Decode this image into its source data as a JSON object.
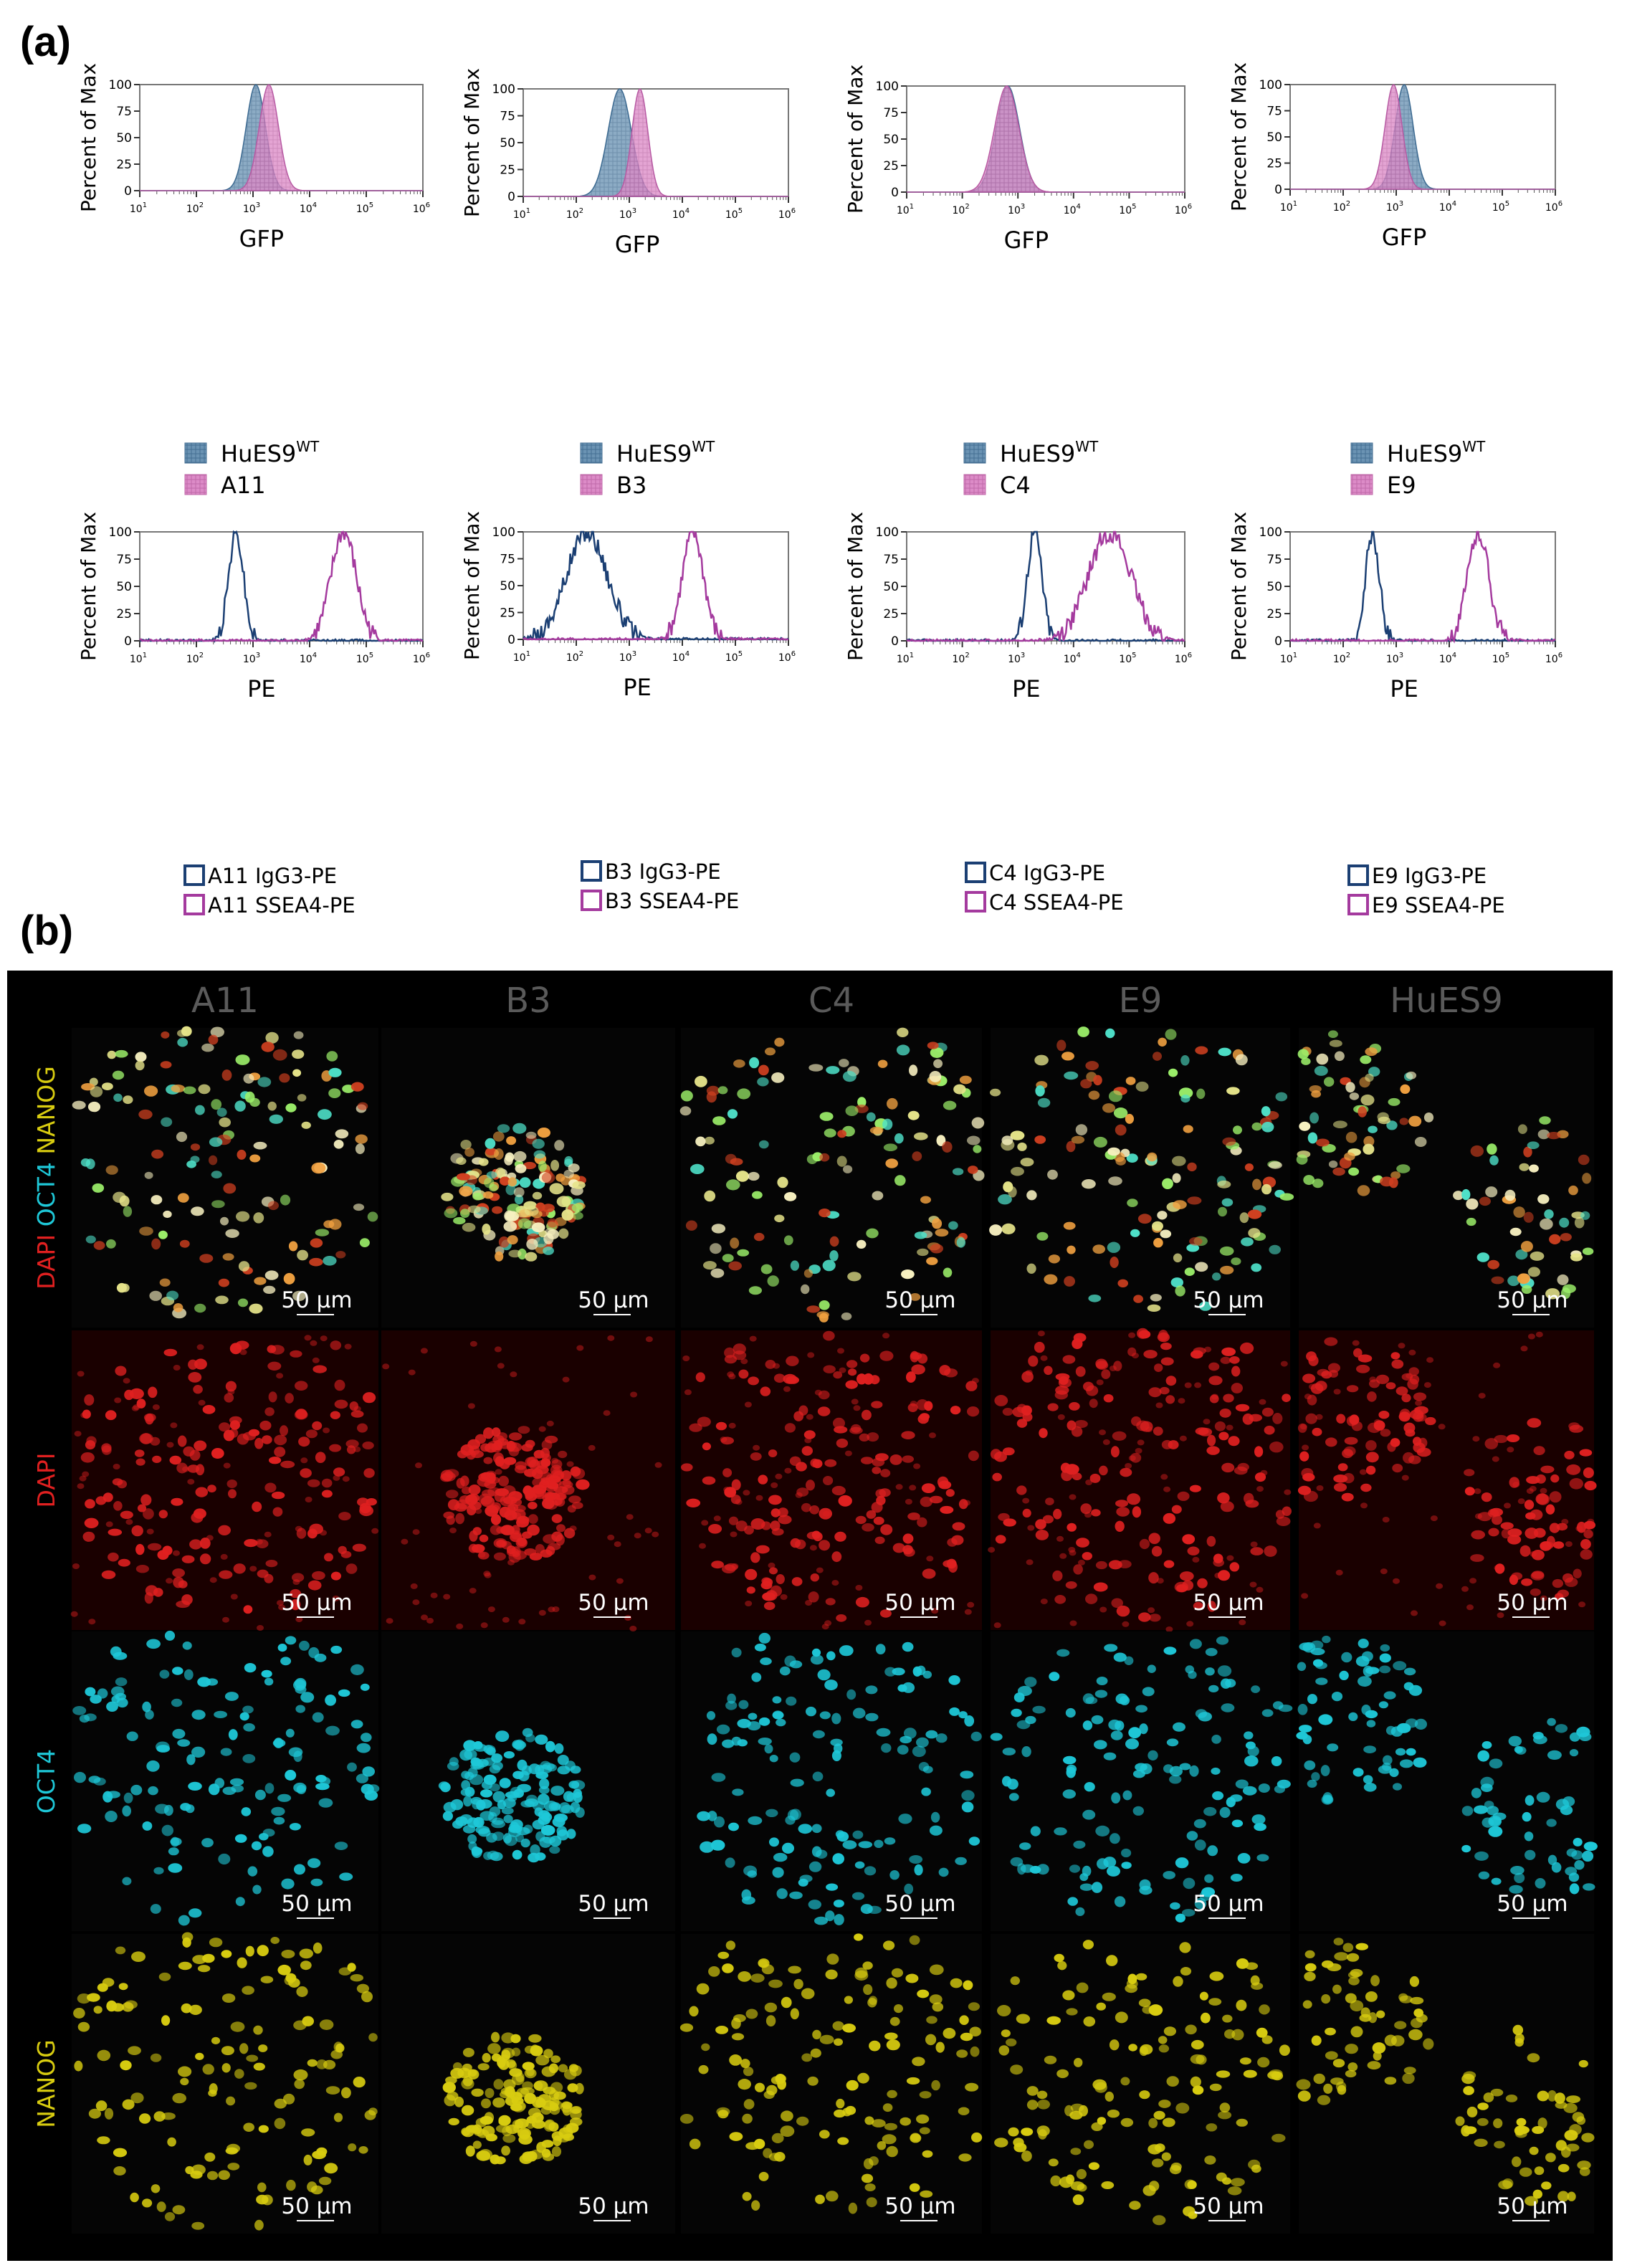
{
  "panel_a_label": "(a)",
  "panel_b_label": "(b)",
  "colors": {
    "wt_fill": "#5b86a8",
    "clone_fill": "#d67fc0",
    "igg_line": "#1b3f73",
    "ssea4_line": "#a43a9e",
    "dapi": "#e02020",
    "oct4": "#1ec8d8",
    "nanog": "#d8cc10"
  },
  "chart_data": [
    {
      "type": "area",
      "panel": "GFP-A11",
      "xlabel": "GFP",
      "ylabel": "Percent of Max",
      "x_scale": "log",
      "xlim": [
        10,
        1000000
      ],
      "ylim": [
        0,
        100
      ],
      "y_ticks": [
        "0",
        "25",
        "50",
        "75",
        "100"
      ],
      "x_ticks": [
        "10^1",
        "10^2",
        "10^3",
        "10^4",
        "10^5",
        "10^6"
      ],
      "series": [
        {
          "name": "HuES9WT",
          "peak_log10": 3.05,
          "width_log10": 0.17
        },
        {
          "name": "A11",
          "peak_log10": 3.28,
          "width_log10": 0.17
        }
      ]
    },
    {
      "type": "area",
      "panel": "GFP-B3",
      "xlabel": "GFP",
      "ylabel": "Percent of Max",
      "x_scale": "log",
      "xlim": [
        10,
        1000000
      ],
      "ylim": [
        0,
        100
      ],
      "y_ticks": [
        "0",
        "25",
        "50",
        "75",
        "100"
      ],
      "x_ticks": [
        "10^1",
        "10^2",
        "10^3",
        "10^4",
        "10^5",
        "10^6"
      ],
      "series": [
        {
          "name": "HuES9WT",
          "peak_log10": 2.82,
          "width_log10": 0.22
        },
        {
          "name": "B3",
          "peak_log10": 3.2,
          "width_log10": 0.15
        }
      ]
    },
    {
      "type": "area",
      "panel": "GFP-C4",
      "xlabel": "GFP",
      "ylabel": "Percent of Max",
      "x_scale": "log",
      "xlim": [
        10,
        1000000
      ],
      "ylim": [
        0,
        100
      ],
      "y_ticks": [
        "0",
        "25",
        "50",
        "75",
        "100"
      ],
      "x_ticks": [
        "10^1",
        "10^2",
        "10^3",
        "10^4",
        "10^5",
        "10^6"
      ],
      "series": [
        {
          "name": "HuES9WT",
          "peak_log10": 2.82,
          "width_log10": 0.21
        },
        {
          "name": "C4",
          "peak_log10": 2.8,
          "width_log10": 0.22
        }
      ]
    },
    {
      "type": "area",
      "panel": "GFP-E9",
      "xlabel": "GFP",
      "ylabel": "Percent of Max",
      "x_scale": "log",
      "xlim": [
        10,
        1000000
      ],
      "ylim": [
        0,
        100
      ],
      "y_ticks": [
        "0",
        "25",
        "50",
        "75",
        "100"
      ],
      "x_ticks": [
        "10^1",
        "10^2",
        "10^3",
        "10^4",
        "10^5",
        "10^6"
      ],
      "series": [
        {
          "name": "HuES9WT",
          "peak_log10": 3.15,
          "width_log10": 0.17
        },
        {
          "name": "E9",
          "peak_log10": 2.95,
          "width_log10": 0.16
        }
      ]
    },
    {
      "type": "line",
      "panel": "PE-A11",
      "xlabel": "PE",
      "ylabel": "Percent of Max",
      "x_scale": "log",
      "xlim": [
        10,
        1000000
      ],
      "ylim": [
        0,
        100
      ],
      "y_ticks": [
        "0",
        "25",
        "50",
        "75",
        "100"
      ],
      "x_ticks": [
        "10^1",
        "10^2",
        "10^3",
        "10^4",
        "10^5",
        "10^6"
      ],
      "series": [
        {
          "name": "A11 IgG3-PE",
          "peak_log10": 2.7,
          "width_log10": 0.13
        },
        {
          "name": "A11 SSEA4-PE",
          "peak_log10": 4.6,
          "width_log10": 0.22
        }
      ]
    },
    {
      "type": "line",
      "panel": "PE-B3",
      "xlabel": "PE",
      "ylabel": "Percent of Max",
      "x_scale": "log",
      "xlim": [
        10,
        1000000
      ],
      "ylim": [
        0,
        100
      ],
      "y_ticks": [
        "0",
        "25",
        "50",
        "75",
        "100"
      ],
      "x_ticks": [
        "10^1",
        "10^2",
        "10^3",
        "10^4",
        "10^5",
        "10^6"
      ],
      "series": [
        {
          "name": "B3 IgG3-PE",
          "peak_log10": 2.2,
          "width_log10": 0.38
        },
        {
          "name": "B3 SSEA4-PE",
          "peak_log10": 4.2,
          "width_log10": 0.2
        }
      ]
    },
    {
      "type": "line",
      "panel": "PE-C4",
      "xlabel": "PE",
      "ylabel": "Percent of Max",
      "x_scale": "log",
      "xlim": [
        10,
        1000000
      ],
      "ylim": [
        0,
        100
      ],
      "y_ticks": [
        "0",
        "25",
        "50",
        "75",
        "100"
      ],
      "x_ticks": [
        "10^1",
        "10^2",
        "10^3",
        "10^4",
        "10^5",
        "10^6"
      ],
      "series": [
        {
          "name": "C4 IgG3-PE",
          "peak_log10": 3.3,
          "width_log10": 0.13
        },
        {
          "name": "C4 SSEA4-PE",
          "peak_log10": 4.65,
          "width_log10": 0.38
        }
      ]
    },
    {
      "type": "line",
      "panel": "PE-E9",
      "xlabel": "PE",
      "ylabel": "Percent of Max",
      "x_scale": "log",
      "xlim": [
        10,
        1000000
      ],
      "ylim": [
        0,
        100
      ],
      "y_ticks": [
        "0",
        "25",
        "50",
        "75",
        "100"
      ],
      "x_ticks": [
        "10^1",
        "10^2",
        "10^3",
        "10^4",
        "10^5",
        "10^6"
      ],
      "series": [
        {
          "name": "E9 IgG3-PE",
          "peak_log10": 2.55,
          "width_log10": 0.13
        },
        {
          "name": "E9 SSEA4-PE",
          "peak_log10": 4.55,
          "width_log10": 0.2
        }
      ]
    }
  ],
  "gfp_legends": [
    {
      "wt": "HuES9",
      "wt_sup": "WT",
      "clone": "A11"
    },
    {
      "wt": "HuES9",
      "wt_sup": "WT",
      "clone": "B3"
    },
    {
      "wt": "HuES9",
      "wt_sup": "WT",
      "clone": "C4"
    },
    {
      "wt": "HuES9",
      "wt_sup": "WT",
      "clone": "E9"
    }
  ],
  "pe_legends": [
    {
      "igg": "A11 IgG3-PE",
      "ssea4": "A11 SSEA4-PE"
    },
    {
      "igg": "B3 IgG3-PE",
      "ssea4": "B3 SSEA4-PE"
    },
    {
      "igg": "C4 IgG3-PE",
      "ssea4": "C4 SSEA4-PE"
    },
    {
      "igg": "E9 IgG3-PE",
      "ssea4": "E9 SSEA4-PE"
    }
  ],
  "micrograph": {
    "columns": [
      "A11",
      "B3",
      "C4",
      "E9",
      "HuES9"
    ],
    "rows": [
      "merge",
      "DAPI",
      "OCT4",
      "NANOG"
    ],
    "merge_labels": [
      "DAPI",
      "OCT4",
      "NANOG"
    ],
    "dapi_label": "DAPI",
    "oct4_label": "OCT4",
    "nanog_label": "NANOG",
    "scale_bar": "50 µm"
  }
}
